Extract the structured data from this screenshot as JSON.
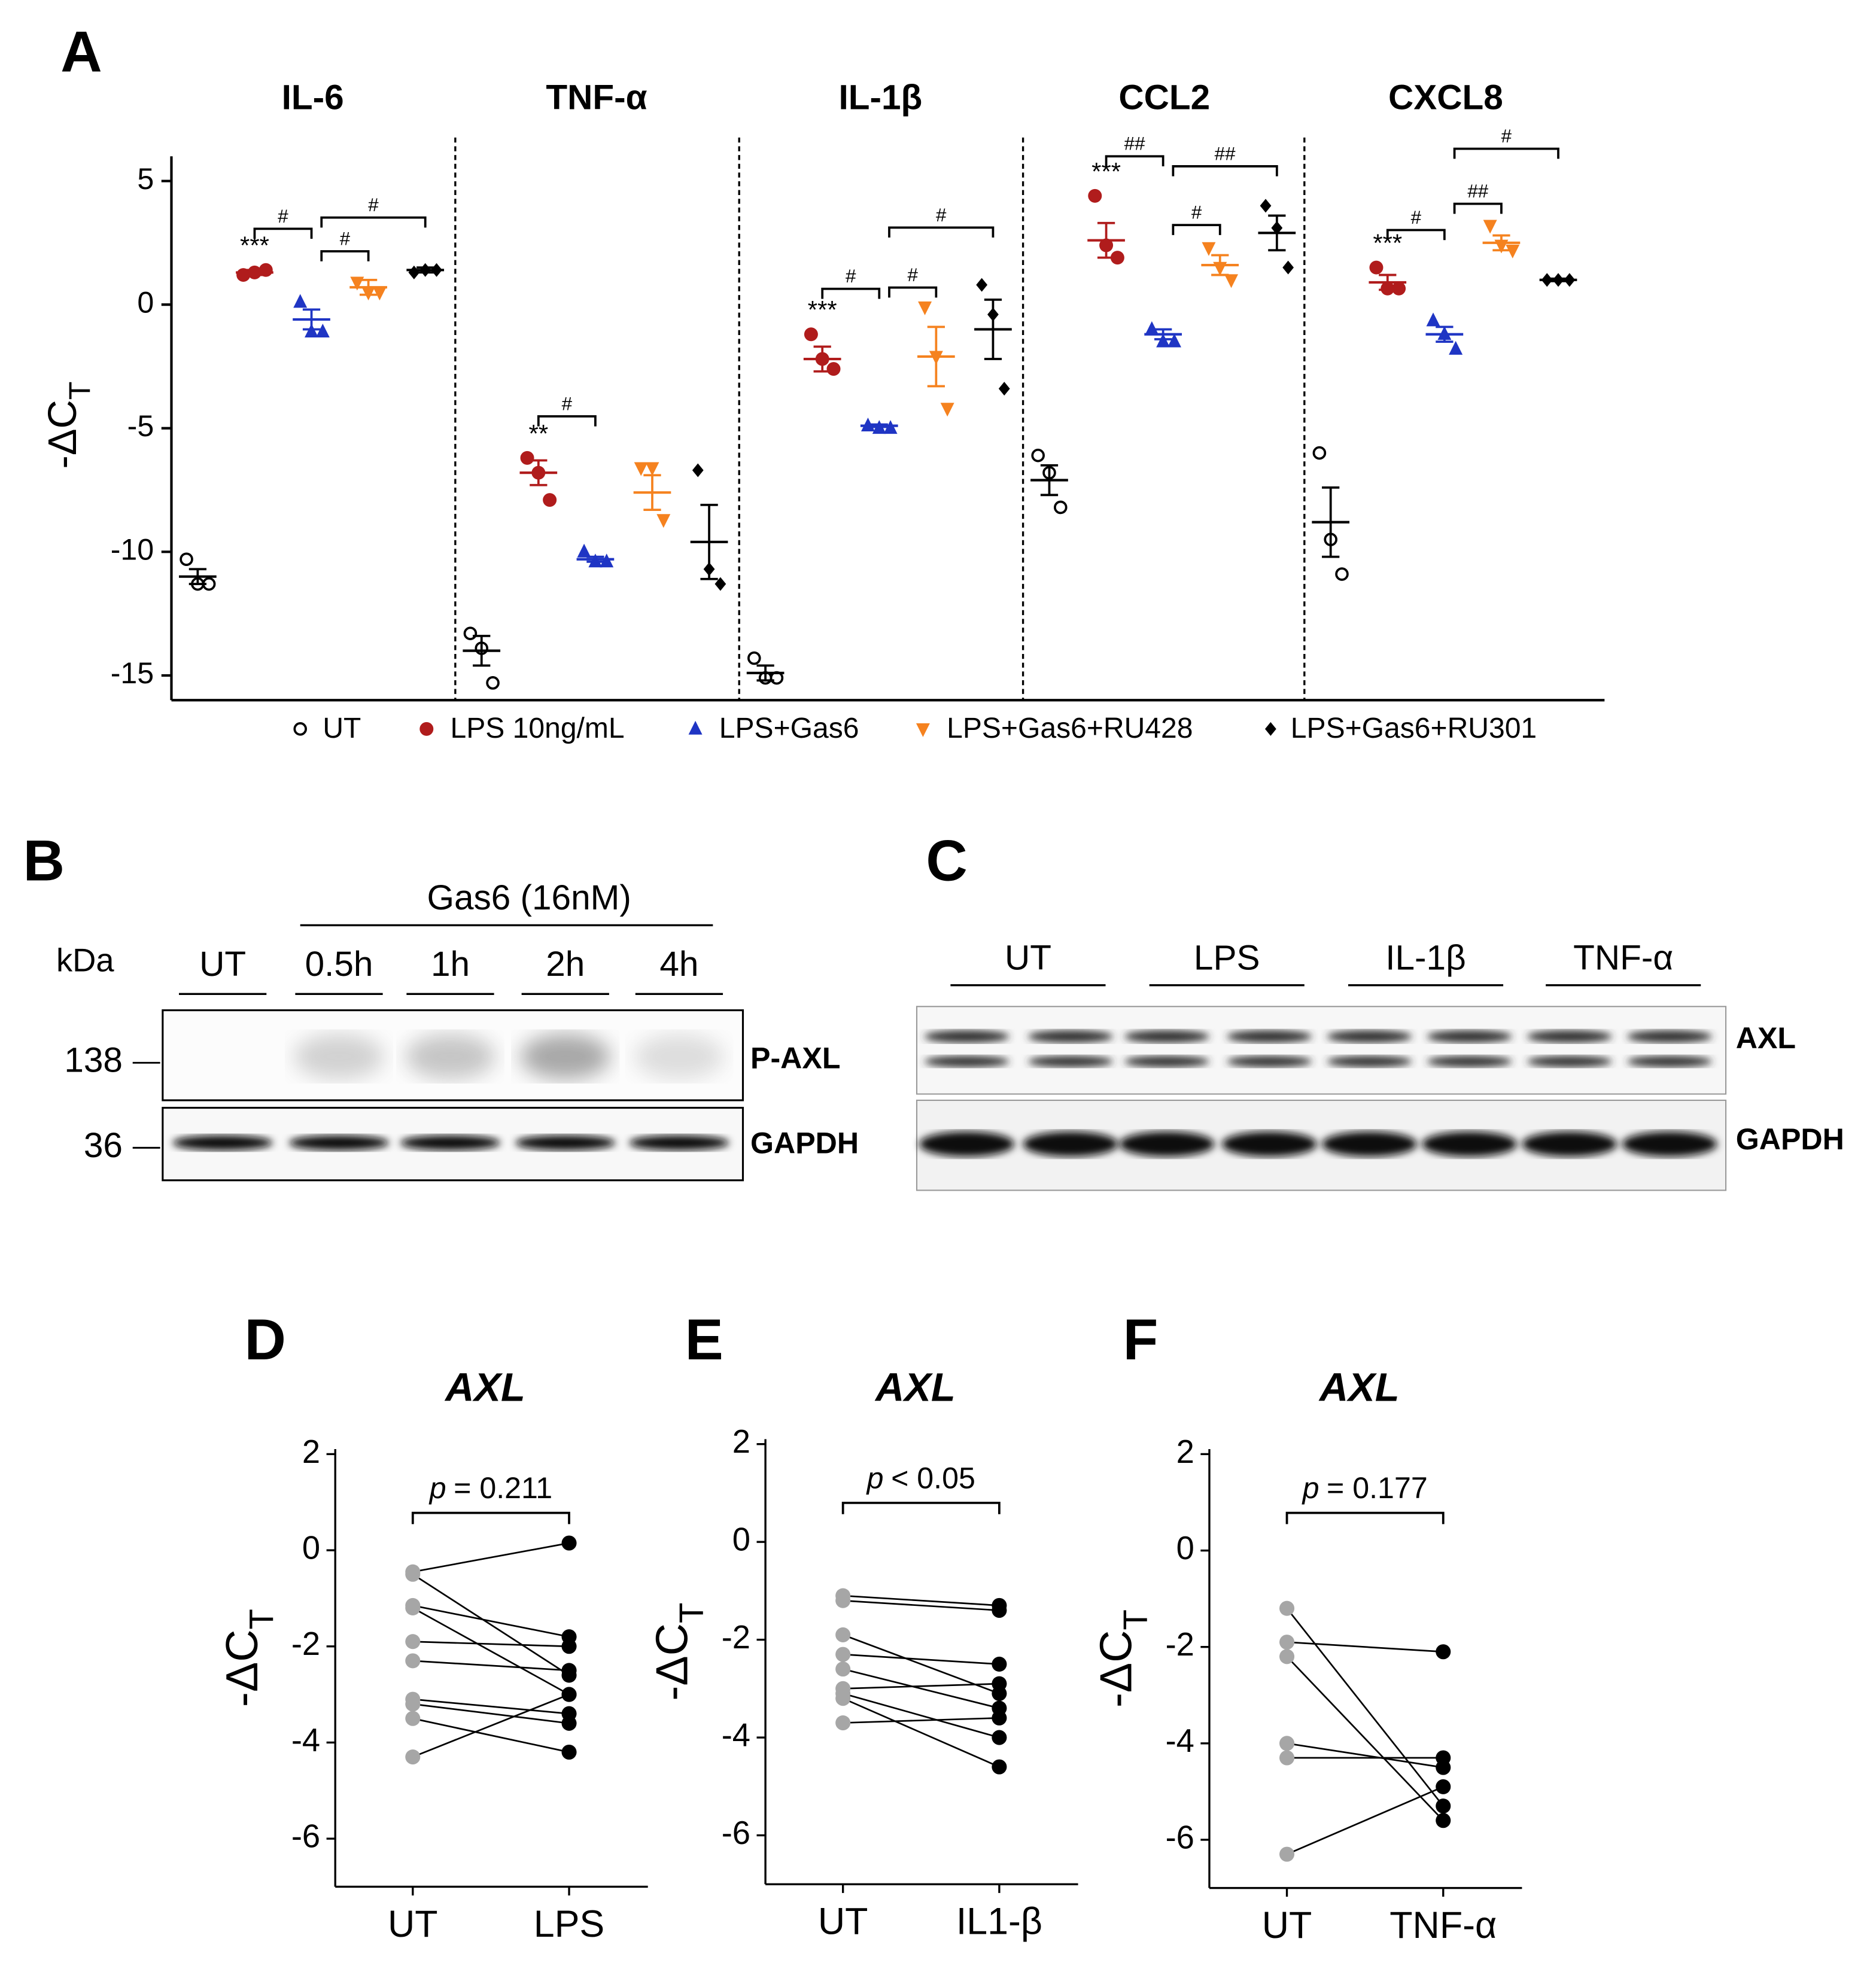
{
  "panel_labels": [
    "A",
    "B",
    "C",
    "D",
    "E",
    "F"
  ],
  "chart_data": [
    {
      "type": "dotplot",
      "groups": [
        "IL-6",
        "TNF-α",
        "IL-1β",
        "CCL2",
        "CXCL8"
      ],
      "y_label": "-ΔC",
      "y_label_sub": "T",
      "ylim": [
        -16,
        6
      ],
      "yticks": [
        5,
        0,
        -5,
        -10,
        -15
      ],
      "legend": "bottom",
      "series": [
        {
          "name": "UT",
          "color": "#000000",
          "marker": "open-circle",
          "points": [
            [
              -10.3,
              -11.3,
              -11.3
            ],
            [
              -13.3,
              -13.9,
              -15.3
            ],
            [
              -14.3,
              -15.1,
              -15.1
            ],
            [
              -6.1,
              -6.8,
              -8.2
            ],
            [
              -6.0,
              -9.5,
              -10.9
            ]
          ],
          "means": [
            -11.0,
            -14.0,
            -14.9,
            -7.1,
            -8.8
          ],
          "errors": [
            0.3,
            0.6,
            0.3,
            0.6,
            1.4
          ]
        },
        {
          "name": "LPS 10ng/mL",
          "color": "#b01c1c",
          "marker": "circle",
          "points": [
            [
              1.2,
              1.3,
              1.4
            ],
            [
              -6.2,
              -6.8,
              -7.9
            ],
            [
              -1.2,
              -2.2,
              -2.6
            ],
            [
              4.4,
              2.4,
              1.9
            ],
            [
              1.5,
              0.65,
              0.65
            ]
          ],
          "means": [
            1.3,
            -6.8,
            -2.2,
            2.6,
            0.9
          ],
          "errors": [
            0.1,
            0.5,
            0.5,
            0.7,
            0.3
          ]
        },
        {
          "name": "LPS+Gas6",
          "color": "#1f35c4",
          "marker": "triangle-up",
          "points": [
            [
              0.1,
              -1.1,
              -1.1
            ],
            [
              -10.0,
              -10.4,
              -10.4
            ],
            [
              -4.9,
              -5.0,
              -5.0
            ],
            [
              -1.0,
              -1.5,
              -1.5
            ],
            [
              -0.65,
              -1.2,
              -1.8
            ]
          ],
          "means": [
            -0.6,
            -10.3,
            -4.9,
            -1.2,
            -1.2
          ],
          "errors": [
            0.4,
            0.1,
            0.05,
            0.2,
            0.3
          ]
        },
        {
          "name": "LPS+Gas6+RU428",
          "color": "#f5821f",
          "marker": "triangle-down",
          "points": [
            [
              0.9,
              0.5,
              0.5
            ],
            [
              -6.6,
              -6.6,
              -8.7
            ],
            [
              -0.1,
              -2.1,
              -4.2
            ],
            [
              2.3,
              1.5,
              1.0
            ],
            [
              3.2,
              2.4,
              2.2
            ]
          ],
          "means": [
            0.7,
            -7.6,
            -2.1,
            1.6,
            2.5
          ],
          "errors": [
            0.3,
            0.7,
            1.2,
            0.4,
            0.3
          ]
        },
        {
          "name": "LPS+Gas6+RU301",
          "color": "#000000",
          "marker": "diamond",
          "points": [
            [
              1.3,
              1.4,
              1.4
            ],
            [
              -6.7,
              -10.7,
              -11.3
            ],
            [
              0.8,
              -0.4,
              -3.4
            ],
            [
              4.0,
              3.1,
              1.5
            ],
            [
              1.0,
              1.0,
              1.0
            ]
          ],
          "means": [
            1.4,
            -9.6,
            -1.0,
            2.9,
            1.0
          ],
          "errors": [
            0.1,
            1.5,
            1.2,
            0.7,
            0.05
          ]
        }
      ],
      "significance": [
        {
          "group": 0,
          "series": 1,
          "label": "***"
        },
        {
          "group": 1,
          "series": 1,
          "label": "**"
        },
        {
          "group": 2,
          "series": 1,
          "label": "***"
        },
        {
          "group": 3,
          "series": 1,
          "label": "***"
        },
        {
          "group": 4,
          "series": 1,
          "label": "***"
        }
      ],
      "brackets": [
        {
          "group": 0,
          "from": 1,
          "to": 2,
          "label": "#"
        },
        {
          "group": 0,
          "from": 2,
          "to": 3,
          "label": "#"
        },
        {
          "group": 0,
          "from": 2,
          "to": 4,
          "label": "#"
        },
        {
          "group": 1,
          "from": 1,
          "to": 2,
          "label": "#"
        },
        {
          "group": 2,
          "from": 1,
          "to": 2,
          "label": "#"
        },
        {
          "group": 2,
          "from": 2,
          "to": 3,
          "label": "#"
        },
        {
          "group": 2,
          "from": 2,
          "to": 4,
          "label": "#"
        },
        {
          "group": 3,
          "from": 1,
          "to": 2,
          "label": "##"
        },
        {
          "group": 3,
          "from": 2,
          "to": 3,
          "label": "#"
        },
        {
          "group": 3,
          "from": 2,
          "to": 4,
          "label": "##"
        },
        {
          "group": 4,
          "from": 1,
          "to": 2,
          "label": "#"
        },
        {
          "group": 4,
          "from": 2,
          "to": 3,
          "label": "##"
        },
        {
          "group": 4,
          "from": 2,
          "to": 4,
          "label": "#"
        }
      ]
    },
    {
      "type": "paired",
      "title": "AXL",
      "categories": [
        "UT",
        "LPS"
      ],
      "colors": [
        "#a6a6a6",
        "#000000"
      ],
      "y_label": "-ΔC",
      "y_label_sub": "T",
      "ylim": [
        -7,
        2
      ],
      "yticks": [
        2,
        0,
        -2,
        -4,
        -6
      ],
      "annotation_symbol": "p",
      "annotation": "= 0.211",
      "values": [
        [
          -0.45,
          -0.5,
          -1.15,
          -1.2,
          -1.9,
          -2.3,
          -3.1,
          -3.2,
          -3.5,
          -4.3
        ],
        [
          0.15,
          -2.6,
          -1.8,
          -3.0,
          -2.0,
          -2.5,
          -3.4,
          -3.6,
          -4.2,
          -3.0
        ]
      ]
    },
    {
      "type": "paired",
      "title": "AXL",
      "categories": [
        "UT",
        "IL1-β"
      ],
      "colors": [
        "#a6a6a6",
        "#000000"
      ],
      "y_label": "-ΔC",
      "y_label_sub": "T",
      "ylim": [
        -7,
        2
      ],
      "yticks": [
        2,
        0,
        -2,
        -4,
        -6
      ],
      "annotation_symbol": "p",
      "annotation": "< 0.05",
      "values": [
        [
          -1.1,
          -1.2,
          -1.9,
          -2.3,
          -2.6,
          -3.0,
          -3.1,
          -3.2,
          -3.7
        ],
        [
          -1.3,
          -1.4,
          -3.1,
          -2.5,
          -3.4,
          -2.9,
          -4.0,
          -4.6,
          -3.6
        ]
      ]
    },
    {
      "type": "paired",
      "title": "AXL",
      "categories": [
        "UT",
        "TNF-α"
      ],
      "colors": [
        "#a6a6a6",
        "#000000"
      ],
      "y_label": "-ΔC",
      "y_label_sub": "T",
      "ylim": [
        -7,
        2
      ],
      "yticks": [
        2,
        0,
        -2,
        -4,
        -6
      ],
      "annotation_symbol": "p",
      "annotation": "= 0.177",
      "values": [
        [
          -1.2,
          -1.9,
          -2.2,
          -4.0,
          -4.3,
          -6.3
        ],
        [
          -5.3,
          -2.1,
          -5.6,
          -4.5,
          -4.3,
          -4.9
        ]
      ]
    }
  ],
  "blots": {
    "B": {
      "header": "Gas6 (16nM)",
      "unit": "kDa",
      "lanes": [
        "UT",
        "0.5h",
        "1h",
        "2h",
        "4h"
      ],
      "markers": [
        138,
        36
      ],
      "proteins": [
        "P-AXL",
        "GAPDH"
      ]
    },
    "C": {
      "lanes": [
        "UT",
        "LPS",
        "IL-1β",
        "TNF-α"
      ],
      "proteins": [
        "AXL",
        "GAPDH"
      ]
    }
  }
}
